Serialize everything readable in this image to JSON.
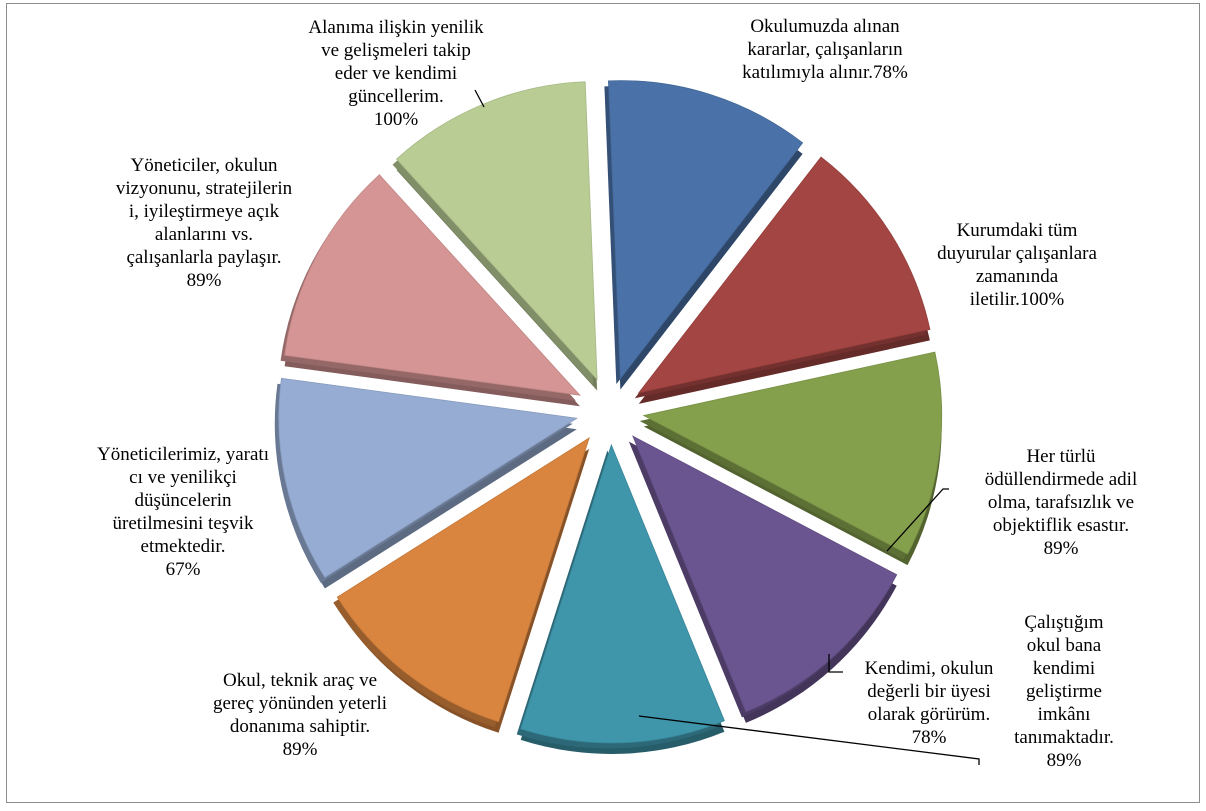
{
  "chart_data": {
    "type": "pie",
    "title": "",
    "exploded": true,
    "three_d": true,
    "legend": "none",
    "slices": [
      {
        "label": "Okulumuzda alınan kararlar, çalışanların katılımıyla alınır.",
        "value": 78,
        "value_text": "78%",
        "color": "#4a72a8",
        "lines": [
          "Okulumuzda alınan",
          "kararlar, çalışanların",
          "katılımıyla alınır.78%"
        ]
      },
      {
        "label": "Kurumdaki tüm duyurular çalışanlara zamanında iletilir.",
        "value": 100,
        "value_text": "100%",
        "color": "#a34542",
        "lines": [
          "Kurumdaki tüm",
          "duyurular çalışanlara",
          "zamanında",
          "iletilir.100%"
        ]
      },
      {
        "label": "Her türlü ödüllendirmede adil olma, tarafsızlık ve objektiflik esastır.",
        "value": 89,
        "value_text": "89%",
        "color": "#84a04c",
        "lines": [
          "Her türlü",
          "ödüllendirmede adil",
          "olma, tarafsızlık ve",
          "objektiflik esastır.",
          "89%"
        ]
      },
      {
        "label": "Kendimi, okulun değerli bir üyesi olarak görürüm.",
        "value": 78,
        "value_text": "78%",
        "color": "#6b5590",
        "lines": [
          "Kendimi, okulun",
          "değerli bir üyesi",
          "olarak görürüm.",
          "78%"
        ]
      },
      {
        "label": "Çalıştığım okul bana kendimi geliştirme imkânı tanımaktadır.",
        "value": 89,
        "value_text": "89%",
        "color": "#3f95aa",
        "lines": [
          "Çalıştığım",
          "okul bana",
          "kendimi",
          "geliştirme",
          "imkânı",
          "tanımaktadır.",
          "89%"
        ]
      },
      {
        "label": "Okul, teknik araç ve gereç yönünden yeterli donanıma sahiptir.",
        "value": 89,
        "value_text": "89%",
        "color": "#d9853f",
        "lines": [
          "Okul, teknik araç ve",
          "gereç yönünden yeterli",
          "donanıma sahiptir.",
          "89%"
        ]
      },
      {
        "label": "Yöneticilerimiz, yaratıcı ve yenilikçi düşüncelerin üretilmesini teşvik etmektedir.",
        "value": 67,
        "value_text": "67%",
        "color": "#96acd2",
        "lines": [
          "Yöneticilerimiz, yaratı",
          "cı ve yenilikçi",
          "düşüncelerin",
          "üretilmesini teşvik",
          "etmektedir.",
          "67%"
        ]
      },
      {
        "label": "Yöneticiler, okulun vizyonunu, stratejilerini, iyileştirmeye açık alanlarını vs. çalışanlarla paylaşır.",
        "value": 89,
        "value_text": "89%",
        "color": "#d59594",
        "lines": [
          "Yöneticiler, okulun",
          "vizyonunu, stratejilerin",
          "i, iyileştirmeye açık",
          "alanlarını vs.",
          "çalışanlarla paylaşır.",
          "89%"
        ]
      },
      {
        "label": "Alanıma ilişkin yenilik ve gelişmeleri takip eder ve kendimi güncellerim.",
        "value": 100,
        "value_text": "100%",
        "color": "#b8cc94",
        "lines": [
          "Alanıma ilişkin yenilik",
          "ve gelişmeleri takip",
          "eder ve kendimi",
          "güncellerim.",
          "100%"
        ]
      }
    ]
  }
}
